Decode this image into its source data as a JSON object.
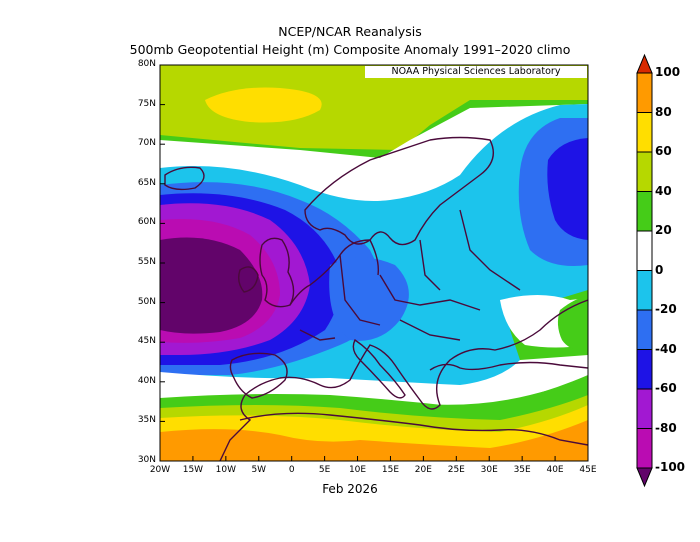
{
  "title_line1": "NCEP/NCAR Reanalysis",
  "title_line2": "500mb Geopotential Height (m) Composite Anomaly 1991–2020 climo",
  "credit": "NOAA Physical Sciences Laboratory",
  "date_label": "Feb 2026",
  "lat_labels": [
    "80N",
    "75N",
    "70N",
    "65N",
    "60N",
    "55N",
    "50N",
    "45N",
    "40N",
    "35N",
    "30N"
  ],
  "lon_labels": [
    "20W",
    "15W",
    "10W",
    "5W",
    "0",
    "5E",
    "10E",
    "15E",
    "20E",
    "25E",
    "30E",
    "35E",
    "40E",
    "45E"
  ],
  "colorbar": {
    "labels": [
      "100",
      "80",
      "60",
      "40",
      "20",
      "0",
      "-20",
      "-40",
      "-60",
      "-80",
      "-100"
    ],
    "colors": {
      "gt80": "#d92a00",
      "60_80": "#ff9a00",
      "40_60": "#ffde00",
      "20_40": "#b6d800",
      "0_20": "#45cc18",
      "near0": "#ffffff",
      "m20_0": "#1cc4ec",
      "m40_m20": "#2e6ff2",
      "m60_m40": "#1e13e6",
      "m80_m60": "#a218d2",
      "m100_m80": "#ba0cb2",
      "lt_m100": "#62046a"
    }
  },
  "colors": {
    "coastline": "#4a0a3a"
  }
}
